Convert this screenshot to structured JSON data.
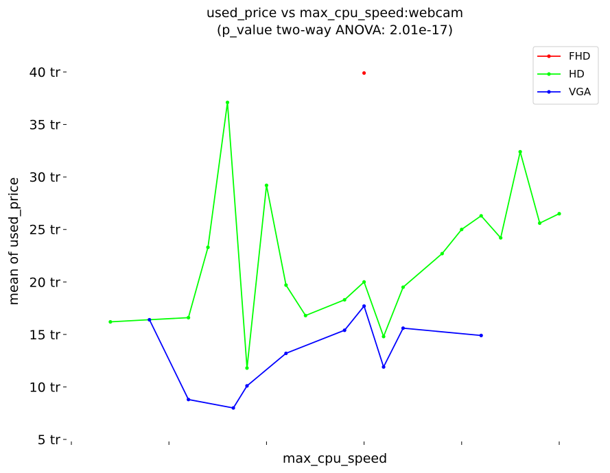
{
  "chart_data": {
    "type": "line",
    "title": "used_price vs max_cpu_speed:webcam",
    "subtitle": "(p_value two-way ANOVA: 2.01e-17)",
    "xlabel": "max_cpu_speed",
    "ylabel": "mean of used_price",
    "ylim": [
      5,
      42
    ],
    "xlim": [
      0,
      25
    ],
    "yticks": [
      5,
      10,
      15,
      20,
      25,
      30,
      35,
      40
    ],
    "ytick_labels": [
      "5 tr",
      "10 tr",
      "15 tr",
      "20 tr",
      "25 tr",
      "30 tr",
      "35 tr",
      "40 tr"
    ],
    "xticks": [
      0,
      5,
      10,
      15,
      20,
      25
    ],
    "grid": false,
    "legend": "top-right",
    "series": [
      {
        "name": "FHD",
        "color": "#ff0000",
        "x": [
          15
        ],
        "y": [
          39.9
        ]
      },
      {
        "name": "HD",
        "color": "#00ff00",
        "x": [
          2,
          4,
          6,
          7,
          8,
          9,
          10,
          11,
          12,
          14,
          15,
          16,
          17,
          19,
          20,
          21,
          22,
          23,
          24,
          25
        ],
        "y": [
          16.2,
          16.4,
          16.6,
          23.3,
          37.1,
          11.8,
          29.2,
          19.7,
          16.8,
          18.3,
          20.0,
          14.8,
          19.5,
          22.7,
          25.0,
          26.3,
          24.2,
          32.4,
          25.6,
          26.5
        ]
      },
      {
        "name": "VGA",
        "color": "#0000ff",
        "x": [
          4,
          6,
          8.3,
          9,
          11,
          14,
          15,
          16,
          17,
          21
        ],
        "y": [
          16.4,
          8.8,
          8.0,
          10.1,
          13.2,
          15.4,
          17.7,
          11.9,
          15.6,
          14.9
        ]
      }
    ]
  }
}
